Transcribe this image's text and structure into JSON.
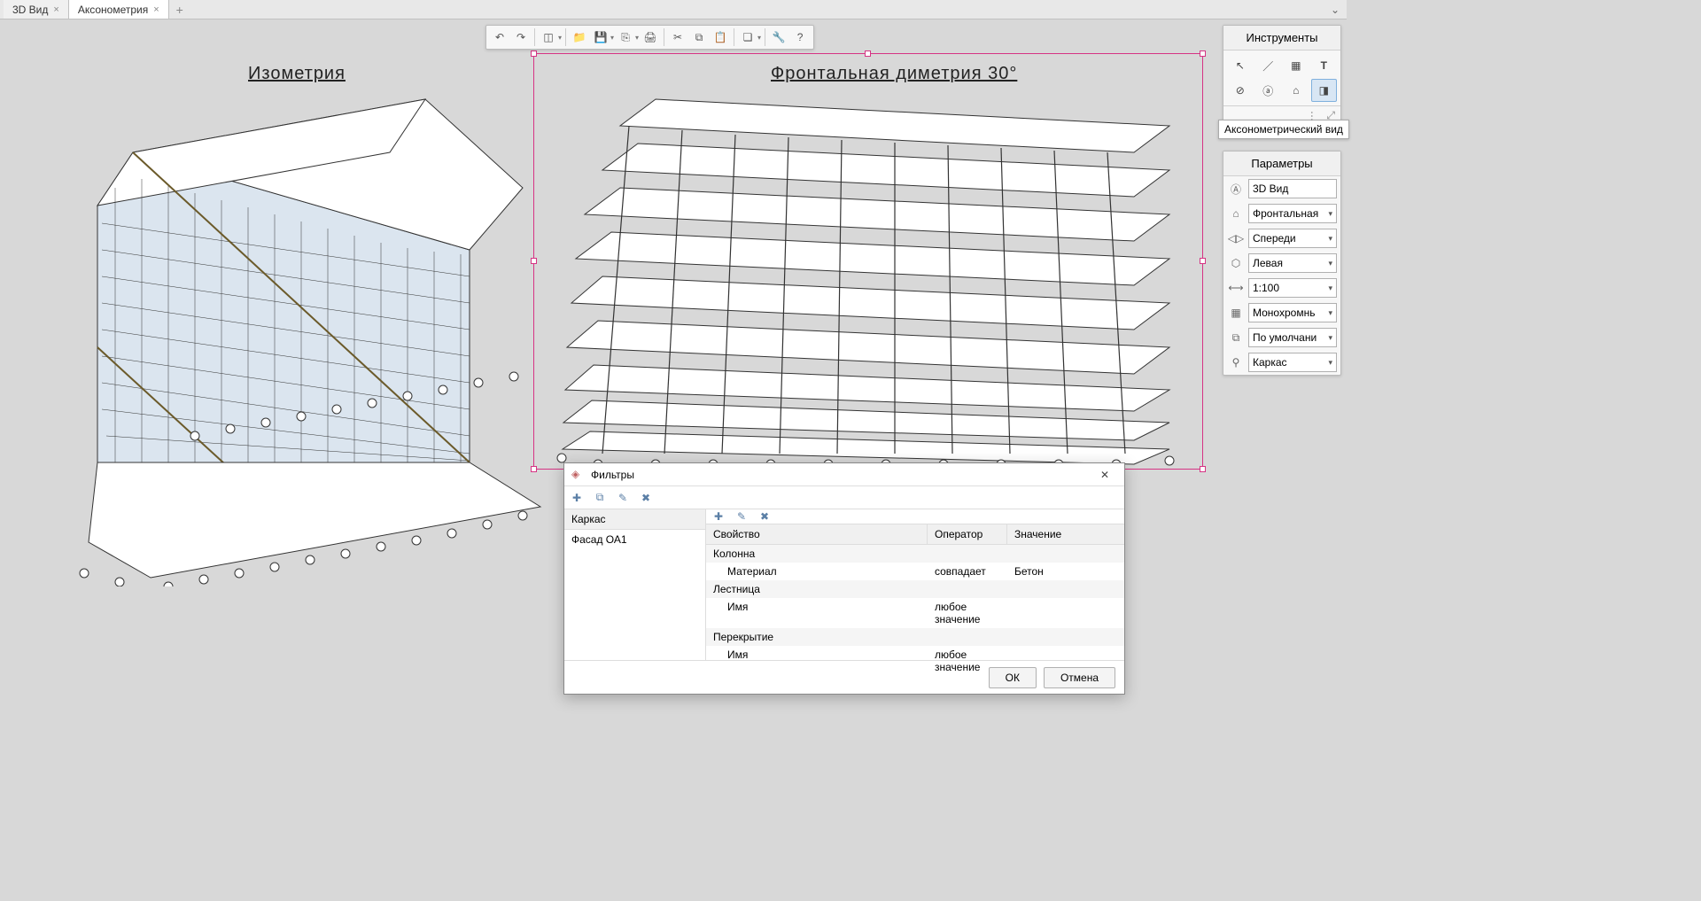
{
  "tabs": {
    "t0": "3D Вид",
    "t1": "Аксонометрия"
  },
  "labels": {
    "iso": "Изометрия",
    "dim": "Фронтальная диметрия 30°"
  },
  "toolbar_icons": [
    "undo",
    "redo",
    "cube",
    "sep",
    "folder",
    "print",
    "export",
    "printer",
    "sep",
    "cut",
    "copy",
    "paste",
    "sep",
    "layers",
    "sep",
    "wrench",
    "help"
  ],
  "tools": {
    "title": "Инструменты",
    "tooltip": "Аксонометрический вид"
  },
  "params": {
    "title": "Параметры",
    "view_name": "3D Вид",
    "projection": "Фронтальная",
    "side": "Спереди",
    "orientation": "Левая",
    "scale": "1:100",
    "color": "Монохромнь",
    "default": "По умолчани",
    "display": "Каркас"
  },
  "filters": {
    "title": "Фильтры",
    "list_header": "Каркас",
    "list_items": [
      "Фасад ОА1"
    ],
    "columns": {
      "c1": "Свойство",
      "c2": "Оператор",
      "c3": "Значение"
    },
    "rows": [
      {
        "type": "group",
        "label": "Колонна"
      },
      {
        "type": "prop",
        "label": "Материал",
        "op": "совпадает",
        "val": "Бетон"
      },
      {
        "type": "group",
        "label": "Лестница"
      },
      {
        "type": "prop",
        "label": "Имя",
        "op": "любое значение",
        "val": ""
      },
      {
        "type": "group",
        "label": "Перекрытие"
      },
      {
        "type": "prop",
        "label": "Имя",
        "op": "любое значение",
        "val": ""
      }
    ],
    "ok": "ОК",
    "cancel": "Отмена"
  },
  "colors": {
    "selection": "#d63384",
    "glass": "#dbe5ef",
    "line": "#333333"
  }
}
